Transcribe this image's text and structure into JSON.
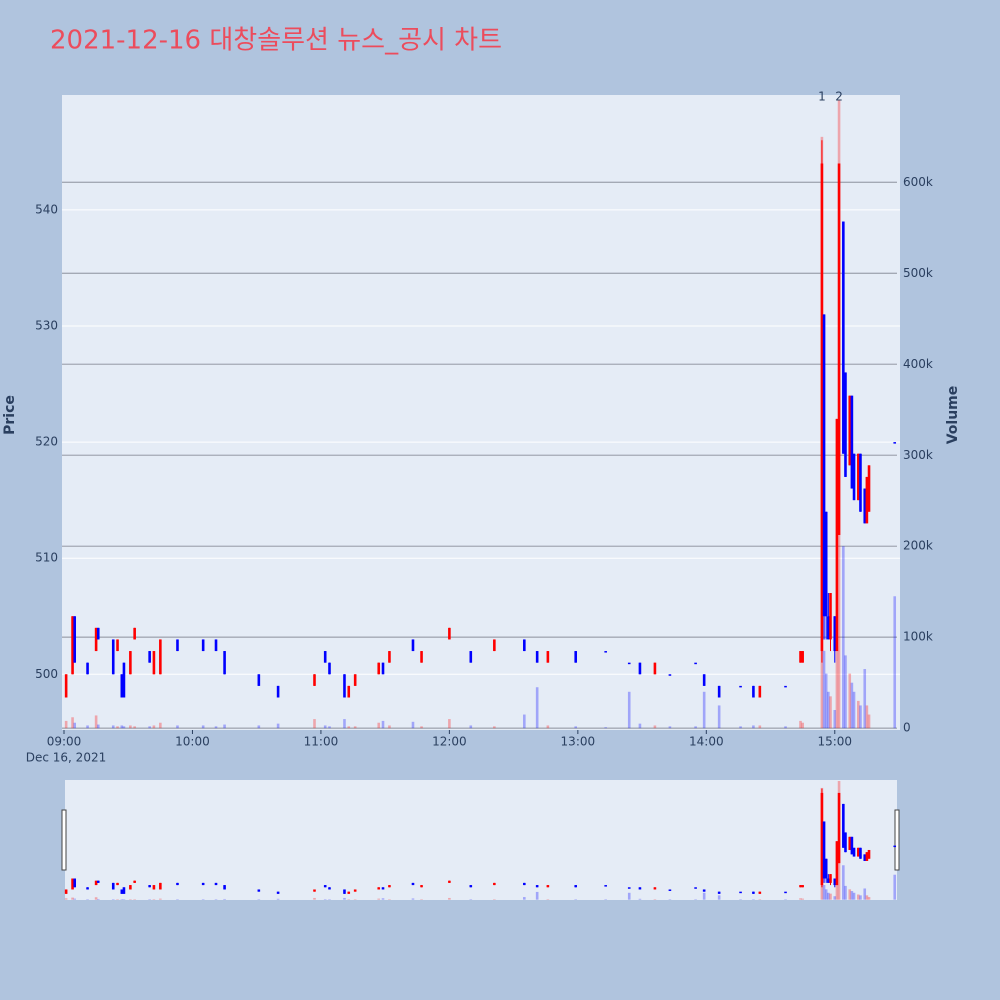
{
  "chart_data": {
    "type": "candlestick",
    "title": "2021-12-16 대창솔루션 뉴스_공시 차트",
    "y_label": "Price",
    "y2_label": "Volume",
    "x_date_label": "Dec 16, 2021",
    "xlim": [
      "2021-12-16 09:00",
      "2021-12-16 15:30"
    ],
    "xticks": [
      {
        "value": "2021-12-16 09:00",
        "label": "09:00"
      },
      {
        "value": "2021-12-16 10:00",
        "label": "10:00"
      },
      {
        "value": "2021-12-16 11:00",
        "label": "11:00"
      },
      {
        "value": "2021-12-16 12:00",
        "label": "12:00"
      },
      {
        "value": "2021-12-16 13:00",
        "label": "13:00"
      },
      {
        "value": "2021-12-16 14:00",
        "label": "14:00"
      },
      {
        "value": "2021-12-16 15:00",
        "label": "15:00"
      }
    ],
    "ylim": [
      495.2,
      549.9
    ],
    "yticks": [
      500,
      510,
      520,
      530,
      540
    ],
    "y2lim": [
      -2000,
      696000
    ],
    "y2ticks": [
      0,
      {
        "value": 100000,
        "label": "100k"
      },
      {
        "value": 200000,
        "label": "200k"
      },
      {
        "value": 300000,
        "label": "300k"
      },
      {
        "value": 400000,
        "label": "400k"
      },
      {
        "value": 500000,
        "label": "500k"
      },
      {
        "value": 600000,
        "label": "600k"
      }
    ],
    "increasing_color": "#ff0000",
    "decreasing_color": "#0000ff",
    "range_slider": true,
    "annotations": [
      {
        "text": "1",
        "x": "2021-12-16 14:54"
      },
      {
        "text": "2",
        "x": "2021-12-16 15:02"
      }
    ],
    "x": [
      "2021-12-16 09:01",
      "2021-12-16 09:04",
      "2021-12-16 09:05",
      "2021-12-16 09:11",
      "2021-12-16 09:15",
      "2021-12-16 09:16",
      "2021-12-16 09:23",
      "2021-12-16 09:25",
      "2021-12-16 09:27",
      "2021-12-16 09:28",
      "2021-12-16 09:31",
      "2021-12-16 09:33",
      "2021-12-16 09:40",
      "2021-12-16 09:42",
      "2021-12-16 09:45",
      "2021-12-16 09:53",
      "2021-12-16 10:05",
      "2021-12-16 10:11",
      "2021-12-16 10:15",
      "2021-12-16 10:31",
      "2021-12-16 10:40",
      "2021-12-16 10:57",
      "2021-12-16 11:02",
      "2021-12-16 11:04",
      "2021-12-16 11:11",
      "2021-12-16 11:13",
      "2021-12-16 11:16",
      "2021-12-16 11:27",
      "2021-12-16 11:29",
      "2021-12-16 11:32",
      "2021-12-16 11:43",
      "2021-12-16 11:47",
      "2021-12-16 12:00",
      "2021-12-16 12:10",
      "2021-12-16 12:21",
      "2021-12-16 12:35",
      "2021-12-16 12:41",
      "2021-12-16 12:46",
      "2021-12-16 12:59",
      "2021-12-16 13:13",
      "2021-12-16 13:24",
      "2021-12-16 13:29",
      "2021-12-16 13:36",
      "2021-12-16 13:43",
      "2021-12-16 13:55",
      "2021-12-16 13:59",
      "2021-12-16 14:06",
      "2021-12-16 14:16",
      "2021-12-16 14:22",
      "2021-12-16 14:25",
      "2021-12-16 14:37",
      "2021-12-16 14:44",
      "2021-12-16 14:45",
      "2021-12-16 14:54",
      "2021-12-16 14:55",
      "2021-12-16 14:56",
      "2021-12-16 14:57",
      "2021-12-16 14:58",
      "2021-12-16 15:00",
      "2021-12-16 15:01",
      "2021-12-16 15:02",
      "2021-12-16 15:04",
      "2021-12-16 15:05",
      "2021-12-16 15:07",
      "2021-12-16 15:08",
      "2021-12-16 15:09",
      "2021-12-16 15:11",
      "2021-12-16 15:12",
      "2021-12-16 15:14",
      "2021-12-16 15:15",
      "2021-12-16 15:16",
      "2021-12-16 15:28"
    ],
    "open": [
      498,
      500,
      505,
      501,
      502,
      504,
      503,
      502,
      500,
      501,
      500,
      503,
      502,
      500,
      500,
      503,
      503,
      503,
      502,
      500,
      499,
      499,
      502,
      501,
      500,
      498,
      499,
      500,
      501,
      501,
      503,
      501,
      503,
      502,
      502,
      503,
      502,
      501,
      502,
      502,
      501,
      501,
      500,
      500,
      501,
      500,
      499,
      499,
      499,
      498,
      499,
      501,
      501,
      502,
      531,
      514,
      505,
      503,
      505,
      502,
      512,
      539,
      526,
      518,
      524,
      519,
      515,
      519,
      516,
      513,
      514,
      520
    ],
    "high": [
      500,
      505,
      505,
      501,
      504,
      504,
      503,
      503,
      500,
      501,
      502,
      504,
      502,
      502,
      503,
      503,
      503,
      503,
      502,
      500,
      499,
      500,
      502,
      501,
      500,
      499,
      500,
      501,
      501,
      502,
      503,
      502,
      504,
      502,
      503,
      503,
      502,
      502,
      502,
      502,
      501,
      501,
      501,
      500,
      501,
      500,
      499,
      499,
      499,
      499,
      499,
      502,
      502,
      546,
      531,
      514,
      507,
      507,
      505,
      522,
      544,
      539,
      526,
      524,
      524,
      519,
      519,
      519,
      516,
      517,
      518,
      520
    ],
    "low": [
      498,
      500,
      501,
      500,
      502,
      503,
      500,
      502,
      498,
      498,
      500,
      503,
      501,
      500,
      500,
      502,
      502,
      502,
      500,
      499,
      498,
      499,
      501,
      500,
      498,
      498,
      499,
      500,
      500,
      501,
      502,
      501,
      503,
      501,
      502,
      502,
      501,
      501,
      501,
      502,
      501,
      500,
      500,
      500,
      501,
      499,
      498,
      499,
      498,
      498,
      499,
      501,
      501,
      501,
      503,
      503,
      503,
      502,
      501,
      502,
      512,
      519,
      517,
      518,
      516,
      515,
      515,
      514,
      513,
      513,
      514,
      520
    ],
    "close": [
      500,
      505,
      501,
      500,
      504,
      503,
      500,
      503,
      498,
      498,
      502,
      504,
      501,
      502,
      503,
      502,
      502,
      502,
      500,
      499,
      498,
      500,
      501,
      500,
      498,
      499,
      500,
      501,
      500,
      502,
      502,
      502,
      504,
      501,
      503,
      502,
      501,
      502,
      501,
      502,
      501,
      500,
      501,
      500,
      501,
      499,
      498,
      499,
      498,
      499,
      499,
      502,
      502,
      544,
      505,
      505,
      503,
      507,
      502,
      522,
      544,
      519,
      517,
      524,
      516,
      515,
      519,
      514,
      513,
      517,
      518,
      520
    ],
    "volume": [
      8000,
      12000,
      6000,
      3000,
      14000,
      4000,
      3000,
      2000,
      3000,
      2000,
      3000,
      2000,
      2000,
      3000,
      6000,
      3000,
      3000,
      2000,
      4000,
      3000,
      5000,
      10000,
      3000,
      2000,
      10000,
      2000,
      2000,
      6000,
      8000,
      3000,
      7000,
      2000,
      10000,
      3000,
      2000,
      15000,
      45000,
      3000,
      2000,
      1000,
      40000,
      5000,
      3000,
      2000,
      2000,
      40000,
      25000,
      2000,
      3000,
      3000,
      2000,
      8000,
      6000,
      650000,
      85000,
      60000,
      40000,
      35000,
      20000,
      90000,
      690000,
      200000,
      80000,
      60000,
      50000,
      40000,
      30000,
      25000,
      65000,
      25000,
      15000,
      145000
    ]
  }
}
